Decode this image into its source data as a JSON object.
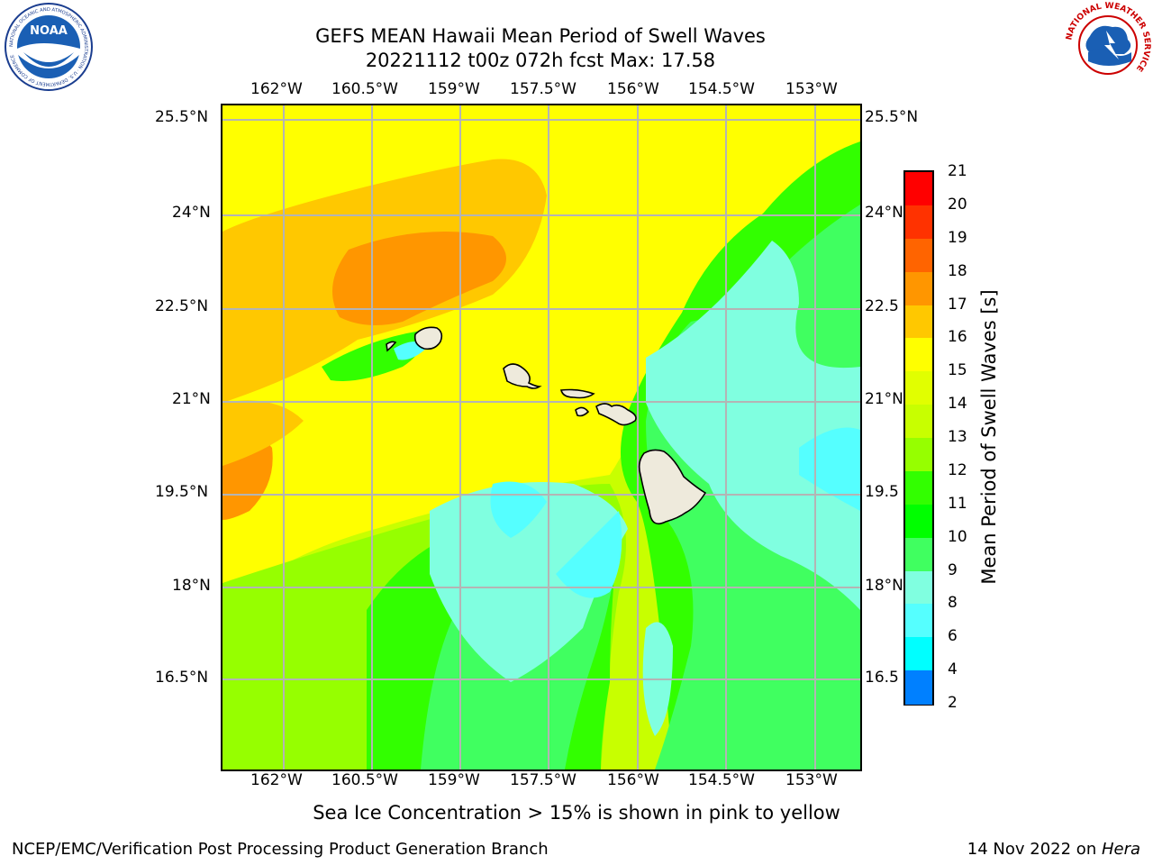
{
  "header": {
    "title_line1": "GEFS MEAN Hawaii Mean Period of Swell Waves",
    "title_line2": "20221112 t00z 072h fcst   Max: 17.58"
  },
  "logos": {
    "left": "noaa-logo",
    "right": "nws-logo",
    "left_ring_text": "NATIONAL OCEANIC AND ATMOSPHERIC ADMINISTRATION · U.S. DEPARTMENT OF COMMERCE",
    "left_center_text": "NOAA",
    "right_ring_text": "NATIONAL WEATHER SERVICE"
  },
  "map": {
    "lon_labels": [
      "162°W",
      "160.5°W",
      "159°W",
      "157.5°W",
      "156°W",
      "154.5°W",
      "153°W"
    ],
    "lat_labels": [
      "25.5°N",
      "24°N",
      "22.5°N",
      "21°N",
      "19.5°N",
      "18°N",
      "16.5°N"
    ],
    "lat_labels_right": [
      "25.5°N",
      "24°N",
      "22.5",
      "21°N",
      "19.5",
      "18°N",
      "16.5"
    ],
    "gridlines": true,
    "land_color": "#eeeadc",
    "grid_color": "#b4b4b4"
  },
  "colorbar": {
    "label": "Mean Period of Swell Waves [s]",
    "levels": [
      "21",
      "20",
      "19",
      "18",
      "17",
      "16",
      "15",
      "14",
      "13",
      "12",
      "11",
      "10",
      "9",
      "8",
      "6",
      "4",
      "2"
    ],
    "colors": [
      "#ff0000",
      "#ff3200",
      "#ff6400",
      "#ff9600",
      "#ffc800",
      "#ffff00",
      "#e1ff00",
      "#c8ff00",
      "#96ff00",
      "#32ff00",
      "#00ff00",
      "#40ff60",
      "#80ffe0",
      "#55ffff",
      "#00ffff",
      "#0080ff",
      "#0000ff"
    ]
  },
  "footer": {
    "note": "Sea Ice Concentration > 15% is shown in pink to yellow",
    "left": "NCEP/EMC/Verification Post Processing Product Generation Branch",
    "right_date": "14 Nov 2022 on ",
    "right_machine": "Hera"
  }
}
